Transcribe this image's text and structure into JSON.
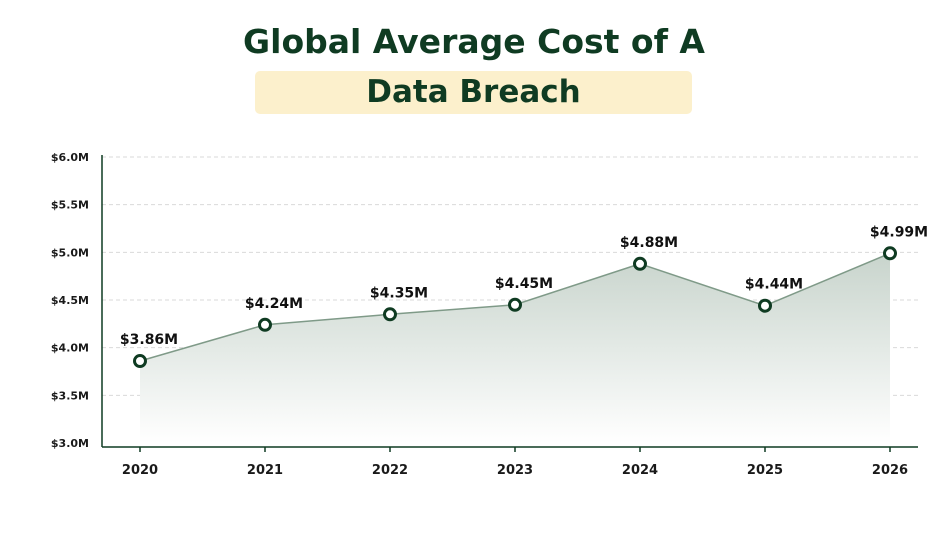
{
  "title_line1": "Global Average Cost of A",
  "title_line2": "Data Breach",
  "colors": {
    "title": "#0f3b22",
    "highlight": "#fcf0cc",
    "line": "#7f9a88",
    "area_top": "#c8d4cc",
    "marker": "#0f3b22",
    "grid": "#d9d9d9"
  },
  "chart_data": {
    "type": "area",
    "title": "Global Average Cost of A Data Breach",
    "categories": [
      "2020",
      "2021",
      "2022",
      "2023",
      "2024",
      "2025",
      "2026"
    ],
    "values": [
      3.86,
      4.24,
      4.35,
      4.45,
      4.88,
      4.44,
      4.99
    ],
    "value_labels": [
      "$3.86M",
      "$4.24M",
      "$4.35M",
      "$4.45M",
      "$4.88M",
      "$4.44M",
      "$4.99M"
    ],
    "ylim": [
      3.0,
      6.0
    ],
    "yticks": [
      3.0,
      3.5,
      4.0,
      4.5,
      5.0,
      5.5,
      6.0
    ],
    "ytick_labels": [
      "$3.0M",
      "$3.5M",
      "$4.0M",
      "$4.5M",
      "$5.0M",
      "$5.5M",
      "$6.0M"
    ],
    "grid": true,
    "xlabel": "",
    "ylabel": ""
  }
}
